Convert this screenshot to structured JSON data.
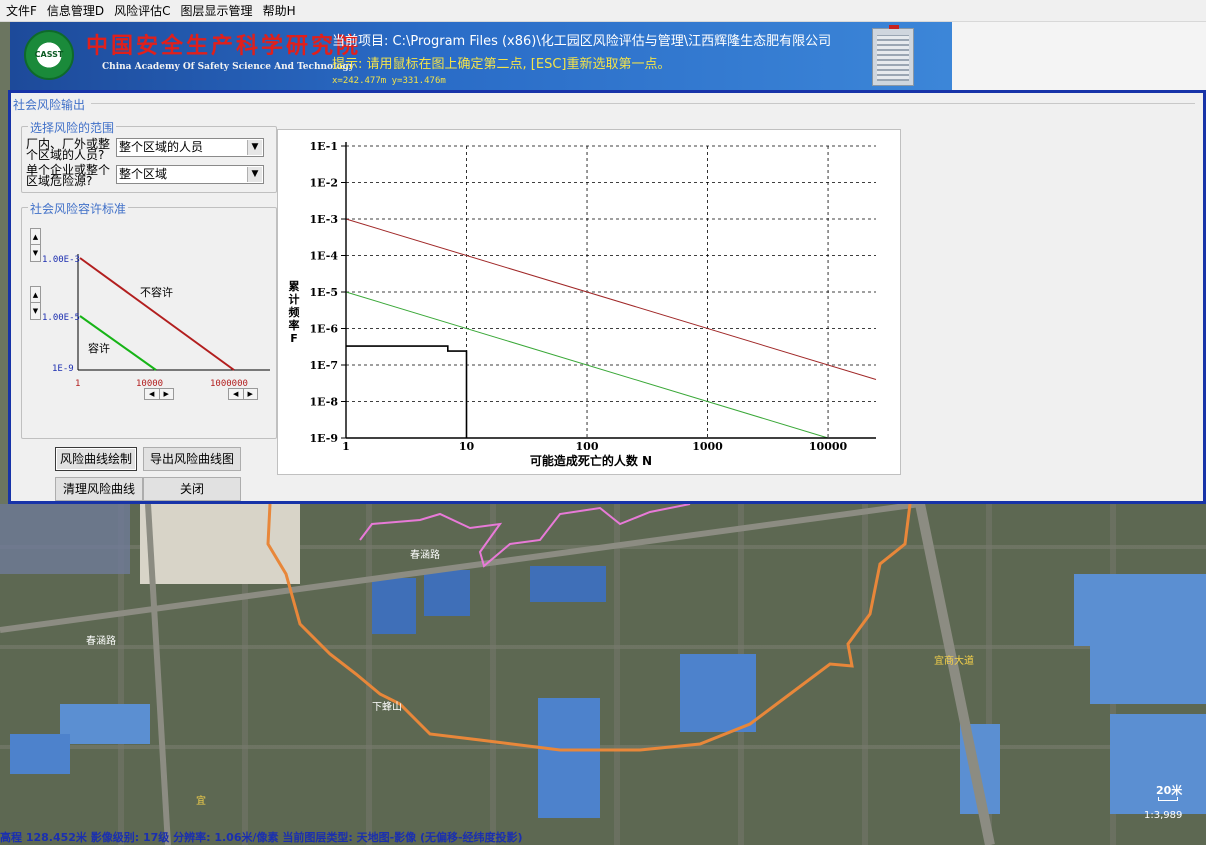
{
  "menu": {
    "items": [
      "文件F",
      "信息管理D",
      "风险评估C",
      "图层显示管理",
      "帮助H"
    ]
  },
  "banner": {
    "org_cn": "中国安全生产科学研究院",
    "org_en": "China Academy Of Safety Science And Technology",
    "logo_text": "CASST",
    "project_line": "当前项目: C:\\Program Files (x86)\\化工园区风险评估与管理\\江西辉隆生态肥有限公司",
    "hint_line": "提示: 请用鼠标在图上确定第二点, [ESC]重新选取第一点。",
    "coord_line": "x=242.477m  y=331.476m"
  },
  "dialog": {
    "title": "社会风险输出",
    "range_group": {
      "legend": "选择风险的范围",
      "field1_label": "厂内、厂外或整个区域的人员?",
      "field1_value": "整个区域的人员",
      "field2_label": "单个企业或整个区域危险源?",
      "field2_value": "整个区域"
    },
    "std_group": {
      "legend": "社会风险容许标准",
      "upper_value": "1.00E-3",
      "lower_value": "1.00E-5",
      "y_min": "1E-9",
      "x_min": "1",
      "x_mid": "10000",
      "x_max": "1000000",
      "label_not_allowed": "不容许",
      "label_allowed": "容许"
    },
    "buttons": {
      "draw": "风险曲线绘制",
      "export": "导出风险曲线图",
      "clear": "清理风险曲线",
      "close": "关闭"
    }
  },
  "chart_data": {
    "type": "line",
    "x_scale": "log",
    "y_scale": "log",
    "xlim": [
      1,
      25000
    ],
    "ylim": [
      1e-09,
      0.1
    ],
    "x_ticks": [
      1,
      10,
      100,
      1000,
      10000
    ],
    "x_tick_labels": [
      "1",
      "10",
      "100",
      "1000",
      "10000"
    ],
    "y_ticks": [
      0.1,
      0.01,
      0.001,
      0.0001,
      1e-05,
      1e-06,
      1e-07,
      1e-08,
      1e-09
    ],
    "y_tick_labels": [
      "1E-1",
      "1E-2",
      "1E-3",
      "1E-4",
      "1E-5",
      "1E-6",
      "1E-7",
      "1E-8",
      "1E-9"
    ],
    "xlabel": "可能造成死亡的人数 N",
    "ylabel": "累计频率F",
    "grid": true,
    "series": [
      {
        "color": "#a02828",
        "points": [
          [
            1,
            0.001
          ],
          [
            25000,
            4e-08
          ]
        ]
      },
      {
        "color": "#3aa838",
        "points": [
          [
            1,
            1e-05
          ],
          [
            10000,
            1e-09
          ]
        ]
      },
      {
        "color": "#000000",
        "points": [
          [
            1,
            3.3e-07
          ],
          [
            7,
            3.3e-07
          ],
          [
            7,
            2.4e-07
          ],
          [
            10,
            2.4e-07
          ],
          [
            10,
            1e-09
          ]
        ]
      }
    ]
  },
  "map": {
    "labels": [
      "春涵路",
      "春涵路",
      "下蜂山",
      "宜商大道",
      "宜"
    ],
    "scale_label": "20米",
    "scale_ratio": "1:3,989",
    "status_text": "高程 128.452米        影像级别: 17级 分辨率: 1.06米/像素        当前图层类型: 天地图-影像 (无偏移-经纬度投影)"
  },
  "colors": {
    "dialog_border": "#1733a8",
    "legend_text": "#4070c8",
    "red_line": "#a02828",
    "green_line": "#3aa838",
    "orange_boundary": "#e8873a",
    "pink_boundary": "#e87ad8"
  }
}
